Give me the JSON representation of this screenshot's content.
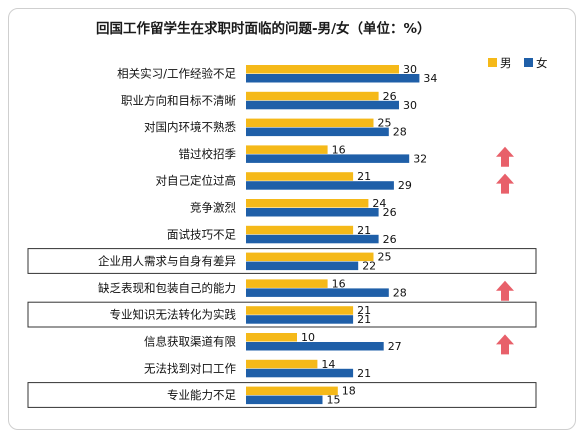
{
  "chart_data": {
    "type": "bar",
    "orientation": "horizontal",
    "title": "回国工作留学生在求职时面临的问题-男/女（单位：%）",
    "categories": [
      "相关实习/工作经验不足",
      "职业方向和目标不清晰",
      "对国内环境不熟悉",
      "错过校招季",
      "对自己定位过高",
      "竞争激烈",
      "面试技巧不足",
      "企业用人需求与自身有差异",
      "缺乏表现和包装自己的能力",
      "专业知识无法转化为实践",
      "信息获取渠道有限",
      "无法找到对口工作",
      "专业能力不足"
    ],
    "series": [
      {
        "name": "男",
        "color": "#F5B919",
        "values": [
          30,
          26,
          25,
          16,
          21,
          24,
          21,
          25,
          16,
          21,
          10,
          14,
          18
        ]
      },
      {
        "name": "女",
        "color": "#1F5FA8",
        "values": [
          34,
          30,
          28,
          32,
          29,
          26,
          26,
          22,
          28,
          21,
          27,
          21,
          15
        ]
      }
    ],
    "legend_position": "top-right",
    "boxed_categories": [
      7,
      9,
      12
    ],
    "arrow_categories": [
      3,
      4,
      8,
      10
    ],
    "arrow_color": "#E8606A",
    "grid": false
  }
}
